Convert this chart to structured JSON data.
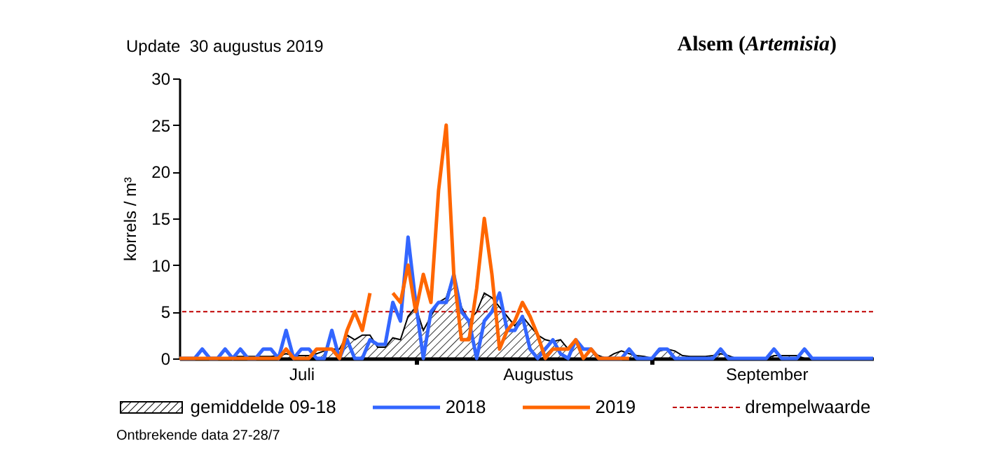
{
  "chart_data": {
    "type": "line",
    "title": "Alsem (Artemisia)",
    "subtitle": "Update  30 augustus 2019",
    "ylabel": "korrels / m³",
    "annotations": [
      "Ontbrekende data 27-28/7"
    ],
    "x": [
      "--07-01",
      "--07-02",
      "--07-03",
      "--07-04",
      "--07-05",
      "--07-06",
      "--07-07",
      "--07-08",
      "--07-09",
      "--07-10",
      "--07-11",
      "--07-12",
      "--07-13",
      "--07-14",
      "--07-15",
      "--07-16",
      "--07-17",
      "--07-18",
      "--07-19",
      "--07-20",
      "--07-21",
      "--07-22",
      "--07-23",
      "--07-24",
      "--07-25",
      "--07-26",
      "--07-27",
      "--07-28",
      "--07-29",
      "--07-30",
      "--07-31",
      "--08-01",
      "--08-02",
      "--08-03",
      "--08-04",
      "--08-05",
      "--08-06",
      "--08-07",
      "--08-08",
      "--08-09",
      "--08-10",
      "--08-11",
      "--08-12",
      "--08-13",
      "--08-14",
      "--08-15",
      "--08-16",
      "--08-17",
      "--08-18",
      "--08-19",
      "--08-20",
      "--08-21",
      "--08-22",
      "--08-23",
      "--08-24",
      "--08-25",
      "--08-26",
      "--08-27",
      "--08-28",
      "--08-29",
      "--08-30",
      "--08-31",
      "--09-01",
      "--09-02",
      "--09-03",
      "--09-04",
      "--09-05",
      "--09-06",
      "--09-07",
      "--09-08",
      "--09-09",
      "--09-10",
      "--09-11",
      "--09-12",
      "--09-13",
      "--09-14",
      "--09-15",
      "--09-16",
      "--09-17",
      "--09-18",
      "--09-19",
      "--09-20",
      "--09-21",
      "--09-22",
      "--09-23",
      "--09-24",
      "--09-25",
      "--09-26",
      "--09-27",
      "--09-28",
      "--09-29",
      "--09-30"
    ],
    "series": [
      {
        "name": "gemiddelde 09-18",
        "type": "area",
        "color": "#000000",
        "values": [
          0,
          0,
          0,
          0,
          0,
          0,
          0,
          0.2,
          0.2,
          0.2,
          0.2,
          0.2,
          0.2,
          0.3,
          0.5,
          0.3,
          0.3,
          0.3,
          0.5,
          0.8,
          1,
          1,
          2.5,
          2,
          2.5,
          2.5,
          1.2,
          1.2,
          2.2,
          2,
          4.5,
          5.5,
          3,
          4.5,
          6,
          6.5,
          9,
          5.5,
          4,
          5,
          7,
          6.5,
          5.5,
          4.5,
          3.5,
          4.5,
          3.5,
          2.5,
          2,
          1.8,
          2,
          1,
          2,
          1,
          0.8,
          0.3,
          0,
          0.5,
          0.8,
          0.5,
          0.3,
          0.2,
          0,
          0.8,
          1,
          0.8,
          0.3,
          0.2,
          0.2,
          0.2,
          0.3,
          0.5,
          0.3,
          0,
          0,
          0,
          0,
          0,
          0.3,
          0.3,
          0.3,
          0.3,
          0,
          0,
          0,
          0,
          0,
          0,
          0,
          0,
          0,
          0
        ]
      },
      {
        "name": "2018",
        "color": "#3366ff",
        "values": [
          0,
          0,
          0,
          1,
          0,
          0,
          1,
          0,
          1,
          0,
          0,
          1,
          1,
          0,
          3,
          0,
          1,
          1,
          0,
          0,
          3,
          0,
          2,
          0,
          0,
          2,
          1.5,
          1.5,
          6,
          4,
          13,
          6,
          0,
          5,
          6,
          6,
          9,
          5,
          4,
          0,
          4,
          5,
          7,
          3,
          3,
          4.5,
          1,
          0,
          1,
          2,
          0.5,
          0,
          2,
          1,
          1,
          0,
          0,
          0,
          0,
          1,
          0,
          0,
          0,
          1,
          1,
          0,
          0,
          0,
          0,
          0,
          0,
          1,
          0,
          0,
          0,
          0,
          0,
          0,
          1,
          0,
          0,
          0,
          1,
          0,
          0,
          0,
          0,
          0,
          0,
          0,
          0,
          0
        ]
      },
      {
        "name": "2019",
        "color": "#ff6600",
        "values": [
          0,
          0,
          0,
          0,
          0,
          0,
          0,
          0,
          0,
          0,
          0,
          0,
          0,
          0,
          1,
          0,
          0,
          0,
          1,
          1,
          1,
          0,
          3,
          5,
          3,
          7,
          null,
          null,
          7,
          6,
          10,
          5,
          9,
          6,
          18,
          25,
          9,
          2,
          2,
          7.5,
          15,
          9,
          1,
          3,
          4,
          6,
          4.5,
          2.5,
          0,
          1,
          1,
          1,
          2,
          0,
          1,
          0,
          0,
          0,
          0,
          0,
          null,
          null,
          null,
          null,
          null,
          null,
          null,
          null,
          null,
          null,
          null,
          null,
          null,
          null,
          null,
          null,
          null,
          null,
          null,
          null,
          null,
          null,
          null,
          null,
          null,
          null,
          null,
          null,
          null,
          null,
          null,
          null
        ]
      }
    ],
    "ref_lines": [
      {
        "axis": "y",
        "value": 5,
        "label": "drempelwaarde",
        "color": "#c00000",
        "line_style": "dashed"
      }
    ],
    "xlim": [
      "--07-01",
      "--09-30"
    ],
    "xticks": [
      {
        "value": "--07-17",
        "label": "Juli"
      },
      {
        "value": "--08-01",
        "label": null
      },
      {
        "value": "--08-17",
        "label": "Augustus"
      },
      {
        "value": "--09-01",
        "label": null
      },
      {
        "value": "--09-16",
        "label": "September"
      }
    ],
    "ylim": [
      0,
      30
    ],
    "yticks": [
      0,
      5,
      10,
      15,
      20,
      25,
      30
    ],
    "legend": "bottom"
  }
}
